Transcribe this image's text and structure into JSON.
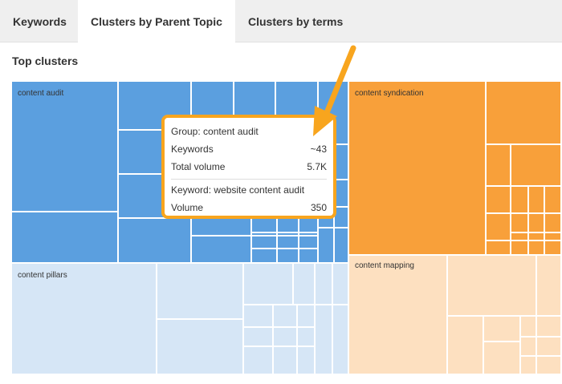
{
  "tabs": [
    {
      "label": "Keywords",
      "active": false
    },
    {
      "label": "Clusters by Parent Topic",
      "active": true
    },
    {
      "label": "Clusters by terms",
      "active": false
    }
  ],
  "section_title": "Top clusters",
  "clusters": [
    {
      "label": "content audit",
      "color": "#5b9fdf"
    },
    {
      "label": "content syndication",
      "color": "#f8a03a"
    },
    {
      "label": "content pillars",
      "color": "#d6e6f6"
    },
    {
      "label": "content mapping",
      "color": "#fde0c0"
    }
  ],
  "tooltip": {
    "group": "Group: content audit",
    "rows": [
      {
        "label": "Keywords",
        "value": "~43"
      },
      {
        "label": "Total volume",
        "value": "5.7K"
      }
    ],
    "keyword": "Keyword: website content audit",
    "keyword_rows": [
      {
        "label": "Volume",
        "value": "350"
      }
    ]
  }
}
